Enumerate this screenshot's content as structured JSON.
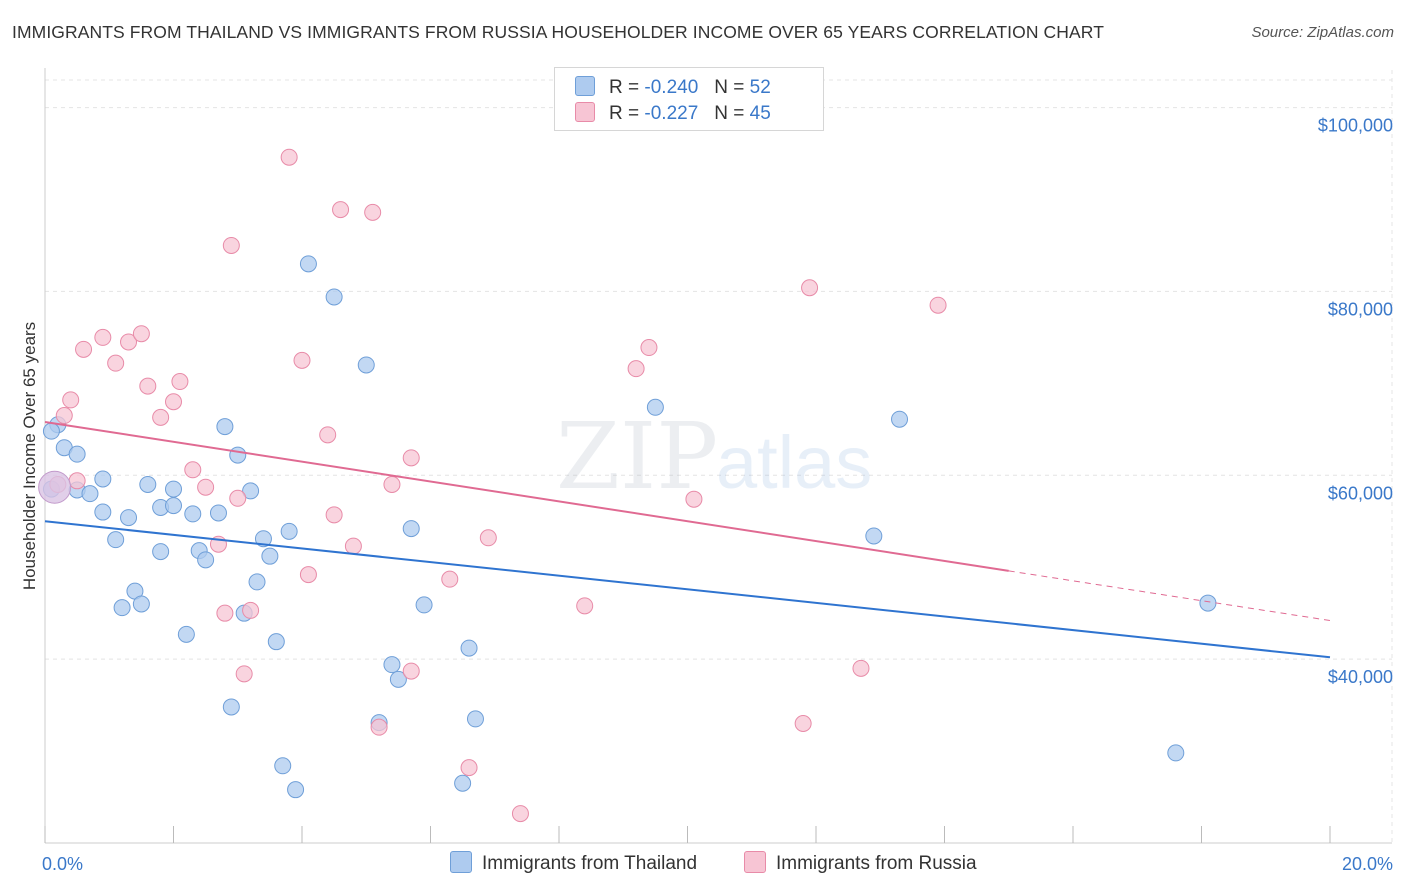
{
  "title": "IMMIGRANTS FROM THAILAND VS IMMIGRANTS FROM RUSSIA HOUSEHOLDER INCOME OVER 65 YEARS CORRELATION CHART",
  "source": "Source: ZipAtlas.com",
  "watermark": {
    "zip": "ZIP",
    "atlas": "atlas"
  },
  "legend": {
    "rows": [
      {
        "r_label": "R =",
        "r_value": "-0.240",
        "n_label": "N =",
        "n_value": "52",
        "color": "#aecbef",
        "border": "#6f9fd8"
      },
      {
        "r_label": "R =",
        "r_value": "-0.227",
        "n_label": "N =",
        "n_value": "45",
        "color": "#f7c5d4",
        "border": "#e88ba8"
      }
    ]
  },
  "bottom_legend": {
    "thailand": "Immigrants from Thailand",
    "russia": "Immigrants from Russia"
  },
  "chart_data": {
    "type": "scatter",
    "title": "IMMIGRANTS FROM THAILAND VS IMMIGRANTS FROM RUSSIA HOUSEHOLDER INCOME OVER 65 YEARS CORRELATION CHART",
    "xlabel": "",
    "ylabel": "Householder Income Over 65 years",
    "xlim": [
      0,
      20
    ],
    "ylim": [
      20000,
      103000
    ],
    "x_tick_labels": [
      "0.0%",
      "20.0%"
    ],
    "y_ticks": [
      40000,
      60000,
      80000,
      100000
    ],
    "y_tick_labels": [
      "$40,000",
      "$60,000",
      "$80,000",
      "$100,000"
    ],
    "grid": true,
    "series": [
      {
        "name": "Immigrants from Thailand",
        "color": "#6f9fd8",
        "fill": "#aecbef",
        "trend": {
          "x0": 0,
          "y0": 55000,
          "x1": 20,
          "y1": 40200,
          "color": "#2f74d0"
        },
        "points": [
          [
            0.2,
            65500
          ],
          [
            0.3,
            63000
          ],
          [
            0.5,
            62300
          ],
          [
            0.9,
            59600
          ],
          [
            0.5,
            58400
          ],
          [
            0.7,
            58000
          ],
          [
            0.1,
            58500
          ],
          [
            1.6,
            59000
          ],
          [
            2.0,
            58500
          ],
          [
            0.9,
            56000
          ],
          [
            1.3,
            55400
          ],
          [
            1.8,
            56500
          ],
          [
            2.0,
            56700
          ],
          [
            2.3,
            55800
          ],
          [
            2.7,
            55900
          ],
          [
            1.1,
            53000
          ],
          [
            1.8,
            51700
          ],
          [
            2.4,
            51800
          ],
          [
            2.5,
            50800
          ],
          [
            2.8,
            65300
          ],
          [
            3.0,
            62200
          ],
          [
            3.2,
            58300
          ],
          [
            3.4,
            53100
          ],
          [
            3.5,
            51200
          ],
          [
            3.8,
            53900
          ],
          [
            3.3,
            48400
          ],
          [
            1.4,
            47400
          ],
          [
            1.2,
            45600
          ],
          [
            1.5,
            46000
          ],
          [
            3.1,
            45000
          ],
          [
            2.2,
            42700
          ],
          [
            3.6,
            41900
          ],
          [
            2.9,
            34800
          ],
          [
            4.1,
            83000
          ],
          [
            4.5,
            79400
          ],
          [
            5.0,
            72000
          ],
          [
            5.7,
            54200
          ],
          [
            5.9,
            45900
          ],
          [
            5.4,
            39400
          ],
          [
            5.5,
            37800
          ],
          [
            6.6,
            41200
          ],
          [
            5.2,
            33100
          ],
          [
            6.7,
            33500
          ],
          [
            3.7,
            28400
          ],
          [
            3.9,
            25800
          ],
          [
            6.5,
            26500
          ],
          [
            9.5,
            67400
          ],
          [
            13.3,
            66100
          ],
          [
            12.9,
            53400
          ],
          [
            18.1,
            46100
          ],
          [
            17.6,
            29800
          ],
          [
            0.1,
            64800
          ]
        ]
      },
      {
        "name": "Immigrants from Russia",
        "color": "#e88ba8",
        "fill": "#f7c5d4",
        "trend": {
          "x0": 0,
          "y0": 65800,
          "x1": 15.0,
          "y1": 49600,
          "dash_x1": 20,
          "dash_y1": 44200,
          "color": "#e06a92"
        },
        "points": [
          [
            0.4,
            68200
          ],
          [
            0.3,
            66500
          ],
          [
            0.6,
            73700
          ],
          [
            0.9,
            75000
          ],
          [
            1.1,
            72200
          ],
          [
            1.3,
            74500
          ],
          [
            1.5,
            75400
          ],
          [
            1.6,
            69700
          ],
          [
            1.8,
            66300
          ],
          [
            2.0,
            68000
          ],
          [
            2.1,
            70200
          ],
          [
            2.3,
            60600
          ],
          [
            2.5,
            58700
          ],
          [
            2.9,
            85000
          ],
          [
            3.0,
            57500
          ],
          [
            2.7,
            52500
          ],
          [
            2.8,
            45000
          ],
          [
            3.2,
            45300
          ],
          [
            3.1,
            38400
          ],
          [
            3.8,
            94600
          ],
          [
            4.0,
            72500
          ],
          [
            4.4,
            64400
          ],
          [
            4.1,
            49200
          ],
          [
            4.5,
            55700
          ],
          [
            4.8,
            52300
          ],
          [
            4.6,
            88900
          ],
          [
            5.1,
            88600
          ],
          [
            5.7,
            61900
          ],
          [
            5.4,
            59000
          ],
          [
            5.2,
            32600
          ],
          [
            5.7,
            38700
          ],
          [
            6.3,
            48700
          ],
          [
            6.6,
            28200
          ],
          [
            6.9,
            53200
          ],
          [
            7.4,
            23200
          ],
          [
            8.4,
            45800
          ],
          [
            9.4,
            73900
          ],
          [
            9.2,
            71600
          ],
          [
            10.1,
            57400
          ],
          [
            11.9,
            80400
          ],
          [
            11.8,
            33000
          ],
          [
            12.7,
            39000
          ],
          [
            13.9,
            78500
          ],
          [
            0.5,
            59400
          ],
          [
            0.2,
            59000
          ]
        ]
      }
    ]
  }
}
